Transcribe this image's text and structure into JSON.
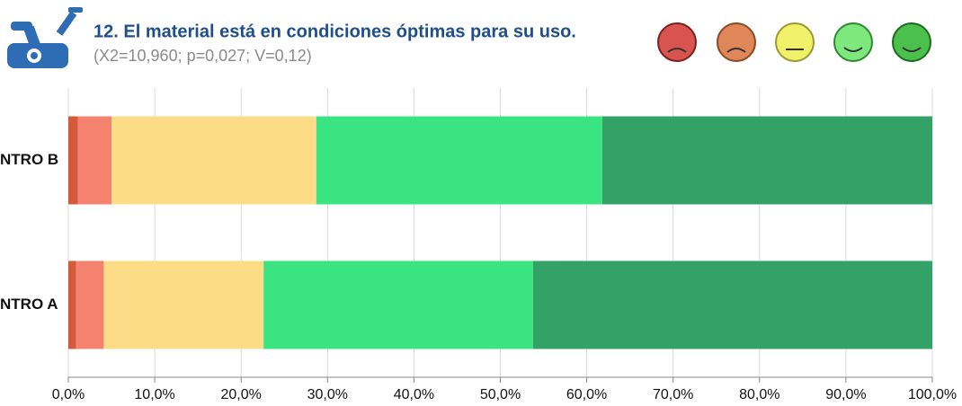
{
  "chart_data": {
    "type": "stacked-barh",
    "title": "12. El material está en condiciones óptimas para su uso.",
    "subtitle": "(X2=10,960; p=0,027; V=0,12)",
    "categories": [
      "NTRO B",
      "NTRO A"
    ],
    "series": [
      {
        "color": "#d35a3a",
        "values": [
          1.1,
          0.9
        ]
      },
      {
        "color": "#f4826e",
        "values": [
          3.9,
          3.2
        ]
      },
      {
        "color": "#fcdc87",
        "values": [
          23.7,
          18.5
        ]
      },
      {
        "color": "#3ae481",
        "values": [
          33.1,
          31.2
        ]
      },
      {
        "color": "#33a266",
        "values": [
          38.2,
          46.2
        ]
      }
    ],
    "xlim": [
      0,
      100
    ],
    "xticks": [
      {
        "value": 0,
        "label": "0,0%"
      },
      {
        "value": 10,
        "label": "10,0%"
      },
      {
        "value": 20,
        "label": "20,0%"
      },
      {
        "value": 30,
        "label": "30,0%"
      },
      {
        "value": 40,
        "label": "40,0%"
      },
      {
        "value": 50,
        "label": "50,0%"
      },
      {
        "value": 60,
        "label": "60,0%"
      },
      {
        "value": 70,
        "label": "70,0%"
      },
      {
        "value": 80,
        "label": "80,0%"
      },
      {
        "value": 90,
        "label": "90,0%"
      },
      {
        "value": 100,
        "label": "100,0%"
      }
    ],
    "grid": true
  }
}
